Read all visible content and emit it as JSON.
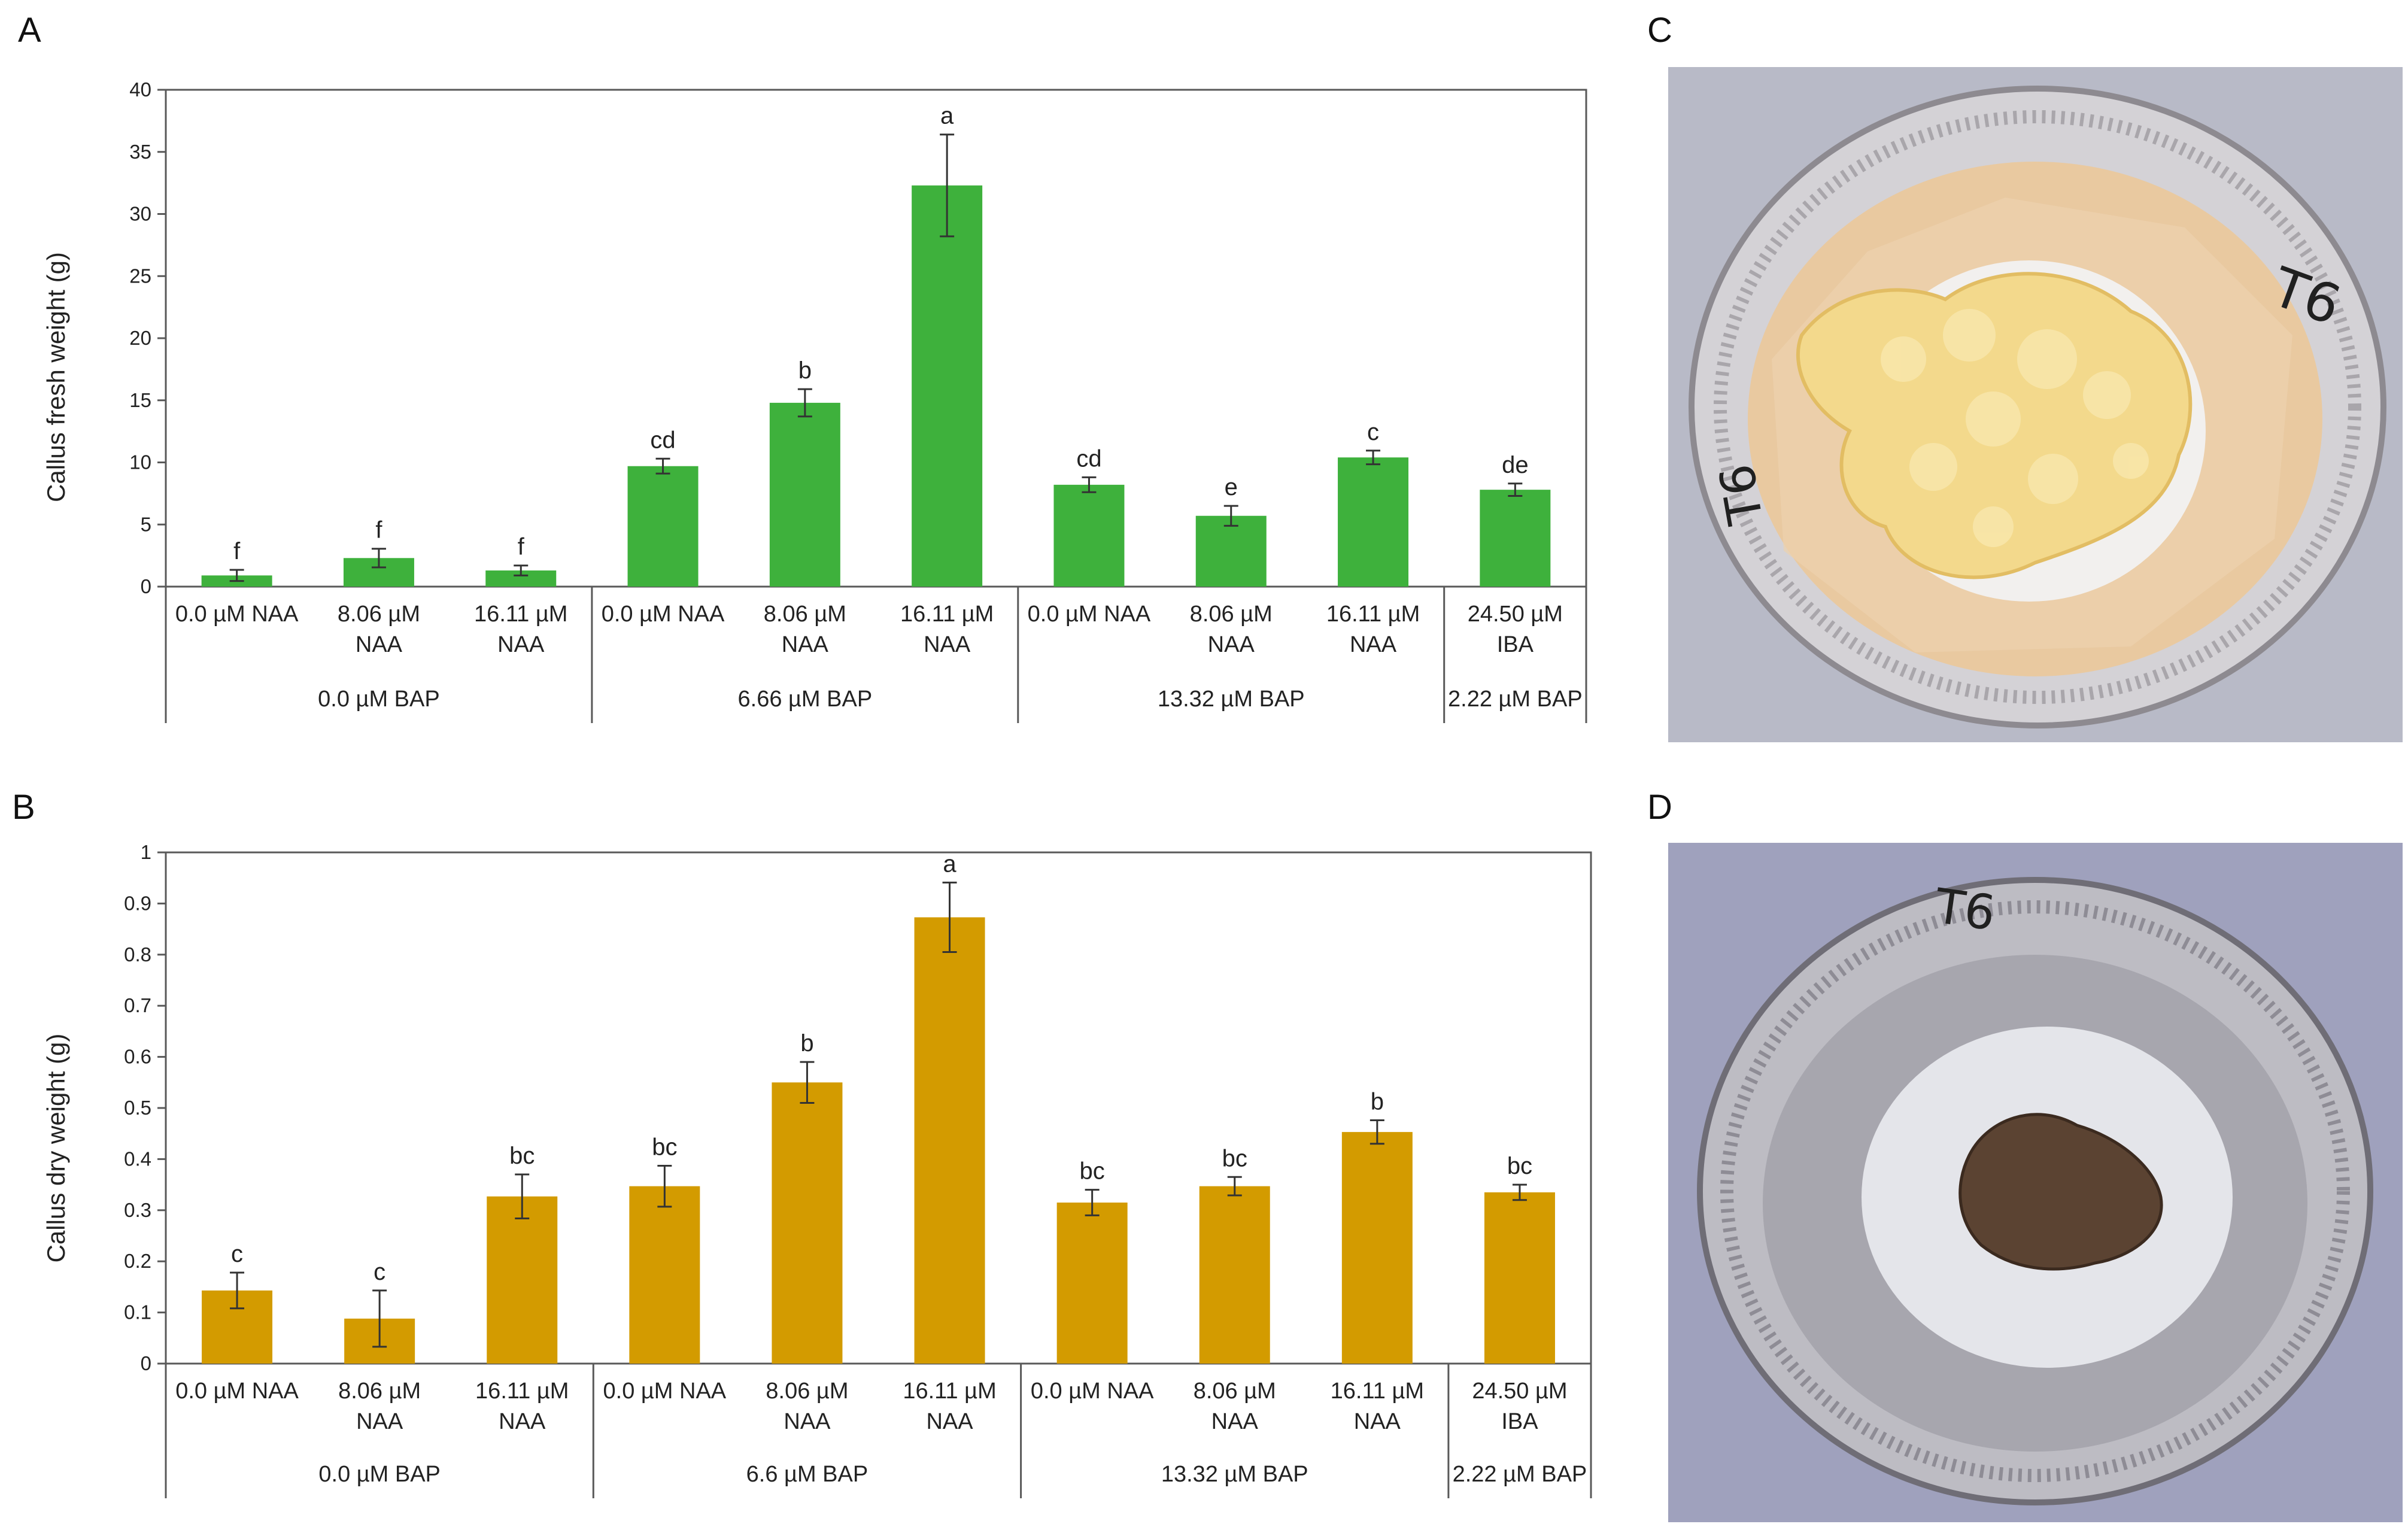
{
  "panel_letters": {
    "a": "A",
    "b": "B",
    "c": "C",
    "d": "D"
  },
  "photos": {
    "c": {
      "description_label": "T6",
      "pan_color": "#c9c3bf",
      "paper_color": "#e7c9a0",
      "callus_color": "#f1d88a"
    },
    "d": {
      "description_label": "T6",
      "pan_color": "#9c9aa5",
      "paper_color": "#dcdde2",
      "callus_color": "#5a4332"
    }
  },
  "chart_data": [
    {
      "type": "bar",
      "panel": "A",
      "title": "",
      "xlabel": "",
      "ylabel": "Callus fresh weight (g)",
      "ylim": [
        0,
        40
      ],
      "yticks": [
        0,
        5,
        10,
        15,
        20,
        25,
        30,
        35,
        40
      ],
      "bar_color": "#3eb13c",
      "categories": [
        [
          "0.0 µM NAA"
        ],
        [
          "8.06 µM",
          "NAA"
        ],
        [
          "16.11  µM",
          "NAA"
        ],
        [
          "0.0 µM NAA"
        ],
        [
          "8.06 µM",
          "NAA"
        ],
        [
          "16.11 µM",
          "NAA"
        ],
        [
          "0.0 µM NAA"
        ],
        [
          "8.06 µM",
          "NAA"
        ],
        [
          "16.11 µM",
          "NAA"
        ],
        [
          "24.50 µM",
          "IBA"
        ]
      ],
      "groups": [
        {
          "label": "0.0 µM BAP",
          "start": 0,
          "count": 3
        },
        {
          "label": "6.66 µM BAP",
          "start": 3,
          "count": 3
        },
        {
          "label": "13.32 µM BAP",
          "start": 6,
          "count": 3
        },
        {
          "label": "2.22 µM BAP",
          "start": 9,
          "count": 1
        }
      ],
      "values": [
        0.9,
        2.3,
        1.3,
        9.7,
        14.8,
        32.3,
        8.2,
        5.7,
        10.4,
        7.8
      ],
      "errors": [
        0.45,
        0.75,
        0.4,
        0.6,
        1.1,
        4.1,
        0.6,
        0.8,
        0.55,
        0.5
      ],
      "significance": [
        "f",
        "f",
        "f",
        "cd",
        "b",
        "a",
        "cd",
        "e",
        "c",
        "de"
      ]
    },
    {
      "type": "bar",
      "panel": "B",
      "title": "",
      "xlabel": "",
      "ylabel": "Callus dry weight (g)",
      "ylim": [
        0,
        1
      ],
      "yticks": [
        0,
        0.1,
        0.2,
        0.3,
        0.4,
        0.5,
        0.6,
        0.7,
        0.8,
        0.9,
        1
      ],
      "bar_color": "#d39b00",
      "categories": [
        [
          "0.0 µM NAA"
        ],
        [
          "8.06 µM",
          "NAA"
        ],
        [
          "16.11 µM",
          "NAA"
        ],
        [
          "0.0 µM NAA"
        ],
        [
          "8.06 µM",
          "NAA"
        ],
        [
          "16.11 µM",
          "NAA"
        ],
        [
          "0.0 µM NAA"
        ],
        [
          "8.06 µM",
          "NAA"
        ],
        [
          "16.11 µM",
          "NAA"
        ],
        [
          "24.50 µM",
          "IBA"
        ]
      ],
      "groups": [
        {
          "label": "0.0 µM BAP",
          "start": 0,
          "count": 3
        },
        {
          "label": "6.6 µM BAP",
          "start": 3,
          "count": 3
        },
        {
          "label": "13.32 µM BAP",
          "start": 6,
          "count": 3
        },
        {
          "label": "2.22 µM BAP",
          "start": 9,
          "count": 1
        }
      ],
      "values": [
        0.143,
        0.088,
        0.327,
        0.347,
        0.55,
        0.873,
        0.315,
        0.347,
        0.453,
        0.335
      ],
      "errors": [
        0.035,
        0.055,
        0.043,
        0.04,
        0.04,
        0.068,
        0.025,
        0.018,
        0.023,
        0.015
      ],
      "significance": [
        "c",
        "c",
        "bc",
        "bc",
        "b",
        "a",
        "bc",
        "bc",
        "b",
        "bc"
      ]
    }
  ]
}
